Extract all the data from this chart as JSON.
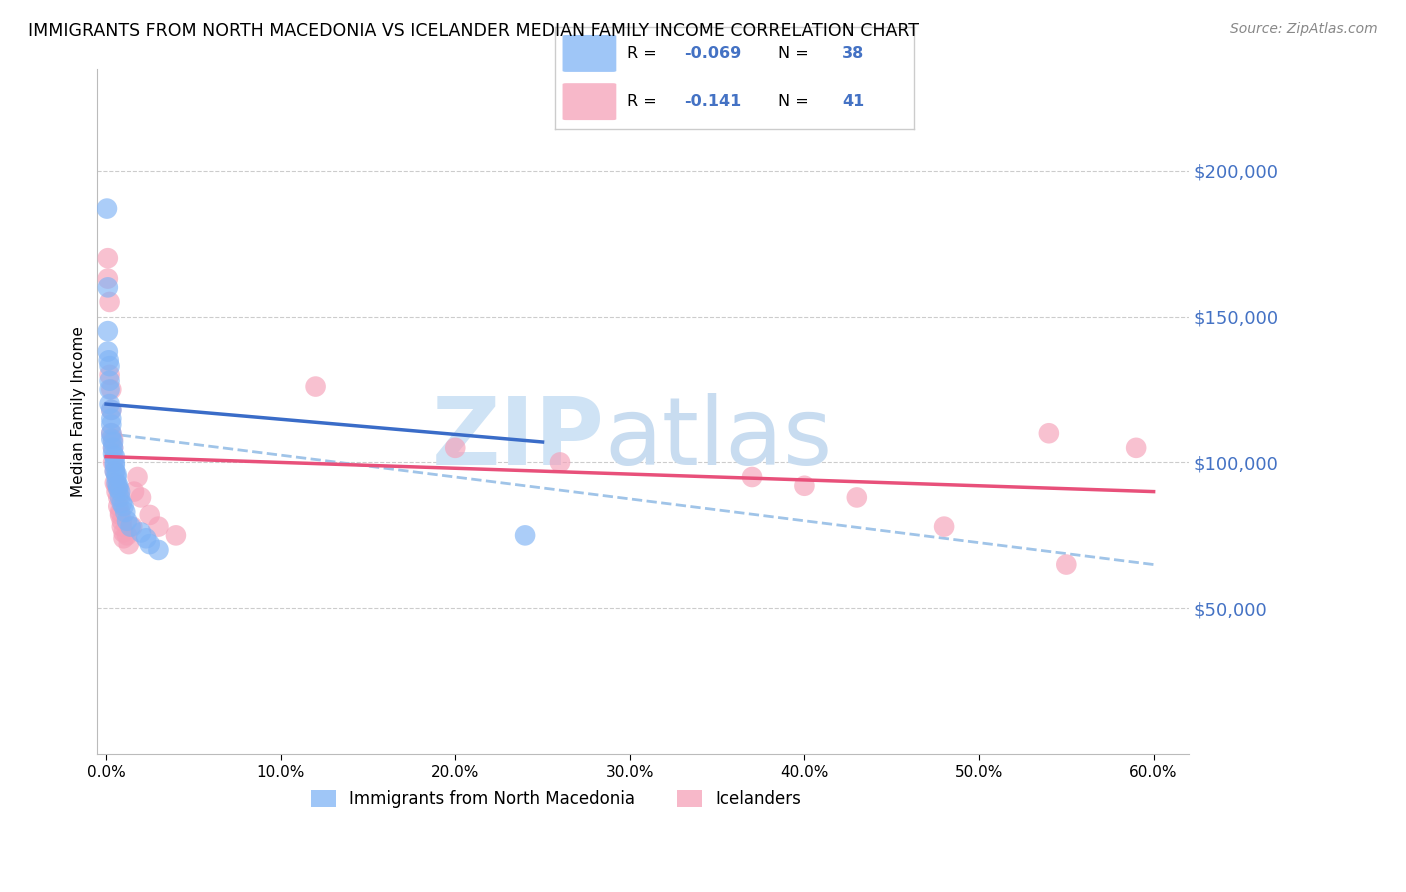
{
  "title": "IMMIGRANTS FROM NORTH MACEDONIA VS ICELANDER MEDIAN FAMILY INCOME CORRELATION CHART",
  "source": "Source: ZipAtlas.com",
  "ylabel": "Median Family Income",
  "xlabel_ticks": [
    "0.0%",
    "10.0%",
    "20.0%",
    "30.0%",
    "40.0%",
    "50.0%",
    "60.0%"
  ],
  "xlabel_vals": [
    0.0,
    0.1,
    0.2,
    0.3,
    0.4,
    0.5,
    0.6
  ],
  "ytick_labels": [
    "$50,000",
    "$100,000",
    "$150,000",
    "$200,000"
  ],
  "ytick_vals": [
    50000,
    100000,
    150000,
    200000
  ],
  "xlim": [
    -0.005,
    0.62
  ],
  "ylim": [
    0,
    235000
  ],
  "blue_color": "#7fb3f5",
  "pink_color": "#f5a0b8",
  "blue_line_color": "#3a6cc8",
  "pink_line_color": "#e8507a",
  "dashed_line_color": "#a0c4e8",
  "watermark_zip_color": "#cfe3f5",
  "watermark_atlas_color": "#c8dcf0",
  "right_axis_color": "#4472c4",
  "blue_R_val": "-0.069",
  "blue_N_val": "38",
  "pink_R_val": "-0.141",
  "pink_N_val": "41",
  "blue_scatter_x": [
    0.0005,
    0.001,
    0.001,
    0.001,
    0.0015,
    0.002,
    0.002,
    0.002,
    0.002,
    0.003,
    0.003,
    0.003,
    0.003,
    0.003,
    0.004,
    0.004,
    0.004,
    0.005,
    0.005,
    0.005,
    0.005,
    0.006,
    0.006,
    0.006,
    0.007,
    0.007,
    0.008,
    0.008,
    0.009,
    0.01,
    0.011,
    0.012,
    0.014,
    0.02,
    0.023,
    0.025,
    0.03,
    0.24
  ],
  "blue_scatter_y": [
    187000,
    160000,
    145000,
    138000,
    135000,
    133000,
    128000,
    125000,
    120000,
    118000,
    115000,
    113000,
    110000,
    108000,
    107000,
    105000,
    103000,
    102000,
    100000,
    99000,
    97000,
    96000,
    95000,
    93000,
    92000,
    91000,
    90000,
    88000,
    86000,
    85000,
    83000,
    80000,
    78000,
    76000,
    74000,
    72000,
    70000,
    75000
  ],
  "pink_scatter_x": [
    0.001,
    0.001,
    0.002,
    0.002,
    0.003,
    0.003,
    0.003,
    0.004,
    0.004,
    0.004,
    0.005,
    0.005,
    0.006,
    0.006,
    0.007,
    0.007,
    0.008,
    0.008,
    0.009,
    0.009,
    0.01,
    0.01,
    0.012,
    0.013,
    0.015,
    0.016,
    0.018,
    0.02,
    0.025,
    0.03,
    0.04,
    0.12,
    0.2,
    0.26,
    0.37,
    0.4,
    0.43,
    0.48,
    0.54,
    0.55,
    0.59
  ],
  "pink_scatter_y": [
    170000,
    163000,
    155000,
    130000,
    125000,
    118000,
    110000,
    108000,
    105000,
    100000,
    97000,
    93000,
    92000,
    90000,
    88000,
    85000,
    83000,
    82000,
    80000,
    78000,
    76000,
    74000,
    75000,
    72000,
    78000,
    90000,
    95000,
    88000,
    82000,
    78000,
    75000,
    126000,
    105000,
    100000,
    95000,
    92000,
    88000,
    78000,
    110000,
    65000,
    105000
  ],
  "blue_line_x0": 0.0,
  "blue_line_y0": 120000,
  "blue_line_x1": 0.25,
  "blue_line_y1": 107000,
  "pink_line_x0": 0.0,
  "pink_line_y0": 102000,
  "pink_line_x1": 0.6,
  "pink_line_y1": 90000,
  "dash_line_x0": 0.0,
  "dash_line_y0": 110000,
  "dash_line_x1": 0.6,
  "dash_line_y1": 65000
}
